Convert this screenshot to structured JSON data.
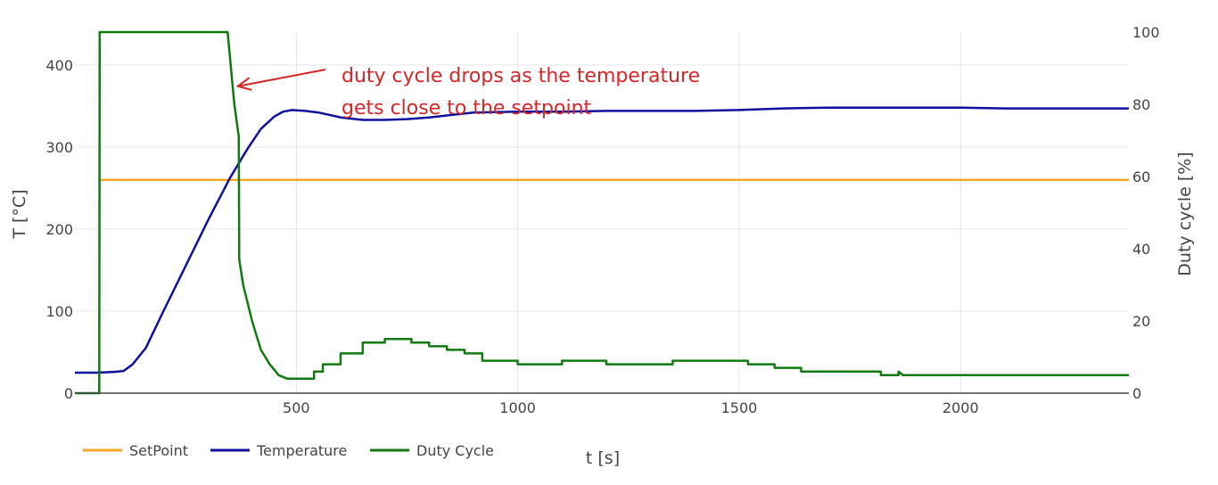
{
  "chart_data": {
    "type": "line",
    "title": "",
    "xlabel": "t [s]",
    "ylabel_left": "T [°C]",
    "ylabel_right": "Duty cycle [%]",
    "xlim": [
      0,
      2380
    ],
    "ylim_left": [
      0,
      440
    ],
    "ylim_right": [
      0,
      100
    ],
    "x_ticks": [
      500,
      1000,
      1500,
      2000
    ],
    "y_left_ticks": [
      0,
      100,
      200,
      300,
      400
    ],
    "y_right_ticks": [
      0,
      20,
      40,
      60,
      80,
      100
    ],
    "grid": true,
    "legend_position": "bottom-left",
    "series": [
      {
        "name": "SetPoint",
        "axis": "left",
        "color": "#f5a623",
        "x": [
          55,
          2380
        ],
        "y": [
          260,
          260
        ]
      },
      {
        "name": "Temperature",
        "axis": "left",
        "color": "#1010a0",
        "x": [
          0,
          50,
          90,
          110,
          130,
          160,
          200,
          250,
          300,
          350,
          390,
          420,
          450,
          470,
          490,
          520,
          550,
          600,
          650,
          700,
          750,
          800,
          900,
          1000,
          1100,
          1200,
          1300,
          1400,
          1500,
          1600,
          1700,
          1800,
          1900,
          2000,
          2100,
          2200,
          2300,
          2380
        ],
        "y": [
          25,
          25,
          26,
          27,
          35,
          55,
          100,
          155,
          210,
          262,
          298,
          322,
          337,
          343,
          345,
          344,
          342,
          336,
          333,
          333,
          334,
          336,
          342,
          343,
          343,
          344,
          344,
          344,
          345,
          347,
          348,
          348,
          348,
          348,
          347,
          347,
          347,
          347
        ]
      },
      {
        "name": "Duty Cycle",
        "axis": "right",
        "color": "#107a10",
        "x": [
          0,
          55,
          56,
          60,
          345,
          360,
          370,
          371,
          380,
          400,
          420,
          440,
          460,
          480,
          500,
          540,
          560,
          600,
          650,
          700,
          720,
          760,
          800,
          840,
          880,
          920,
          960,
          1000,
          1100,
          1200,
          1300,
          1350,
          1400,
          1500,
          1520,
          1580,
          1640,
          1700,
          1800,
          1820,
          1860,
          1870,
          1950,
          2000,
          2200,
          2380
        ],
        "y": [
          0,
          0,
          100,
          100,
          100,
          80,
          71,
          37,
          30,
          20,
          12,
          8,
          5,
          4,
          4,
          6,
          8,
          11,
          14,
          15,
          15,
          14,
          13,
          12,
          11,
          9,
          9,
          8,
          9,
          8,
          8,
          9,
          9,
          9,
          8,
          7,
          6,
          6,
          6,
          5,
          6,
          5,
          5,
          5,
          5,
          5
        ]
      }
    ],
    "annotation": {
      "line1": "duty cycle drops as the temperature",
      "line2": "gets close to the setpoint",
      "arrow_target": {
        "x": 368,
        "y_right": 85
      }
    }
  }
}
